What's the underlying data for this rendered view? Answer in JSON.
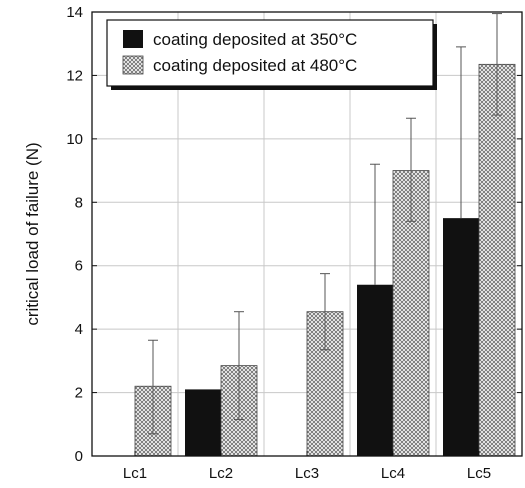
{
  "chart_data": {
    "type": "bar",
    "categories": [
      "Lc1",
      "Lc2",
      "Lc3",
      "Lc4",
      "Lc5"
    ],
    "series": [
      {
        "name": "coating deposited at 350°C",
        "values": [
          0,
          2.1,
          0,
          5.4,
          7.5
        ],
        "error_upper": [
          null,
          null,
          null,
          9.2,
          12.9
        ],
        "color": "#111111",
        "fill": "solid"
      },
      {
        "name": "coating deposited at 480°C",
        "values": [
          2.2,
          2.85,
          4.55,
          9.0,
          12.35
        ],
        "error_lower": [
          0.7,
          1.15,
          3.35,
          7.4,
          10.75
        ],
        "error_upper": [
          3.65,
          4.55,
          5.75,
          10.65,
          13.95
        ],
        "color": "#9a9a9a",
        "fill": "crosshatch"
      }
    ],
    "xlabel": "",
    "ylabel": "critical load of failure (N)",
    "ylim": [
      0,
      14
    ],
    "yticks": [
      0,
      2,
      4,
      6,
      8,
      10,
      12,
      14
    ],
    "grid": true,
    "legend_position": "top-left"
  }
}
